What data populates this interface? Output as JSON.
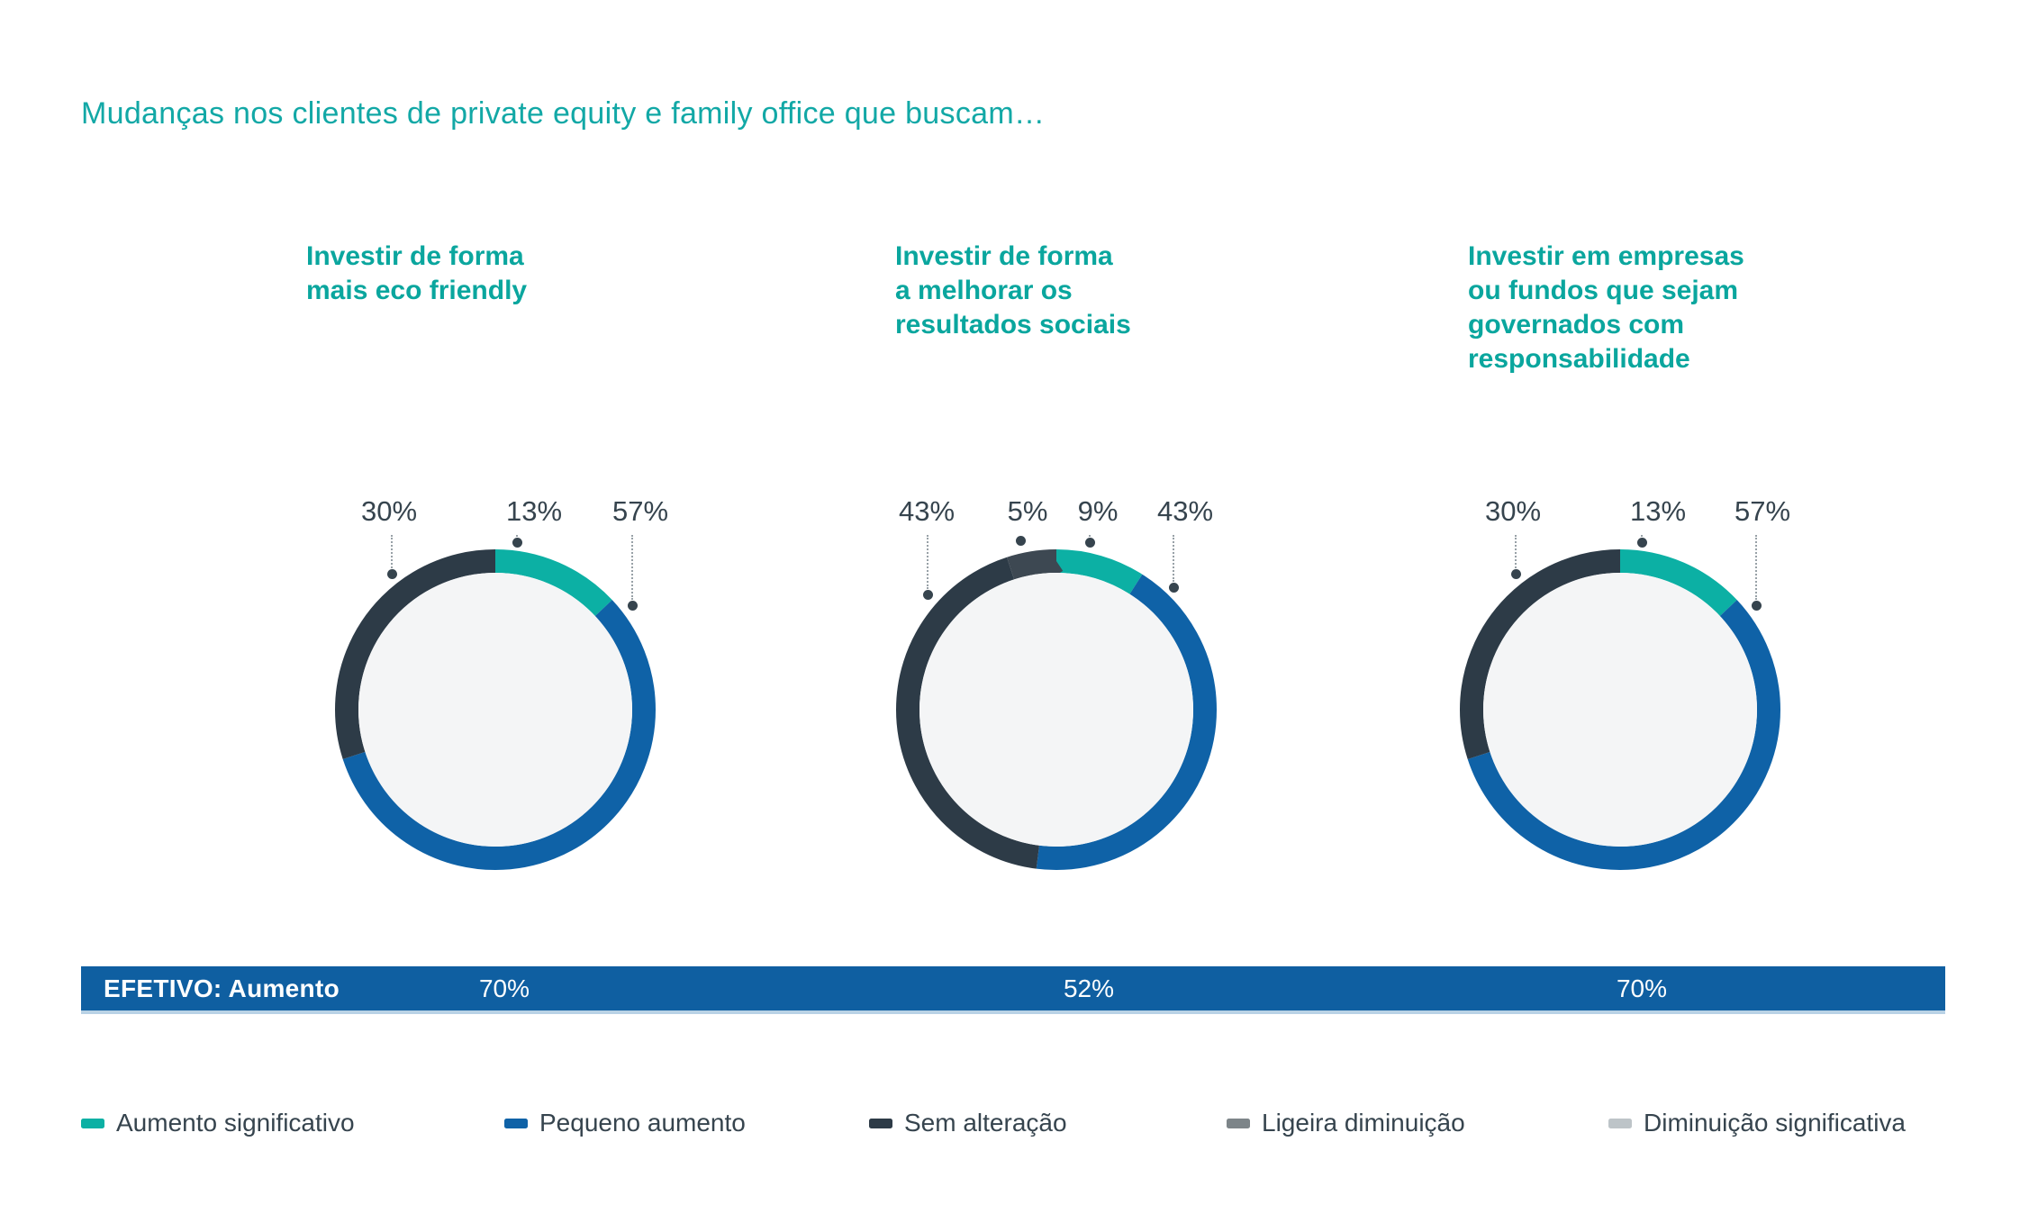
{
  "title": "Mudanças nos clientes de private equity e family office que buscam…",
  "colors": {
    "title_teal": "#12a8a6",
    "heading_teal": "#0aa69e",
    "teal": "#0cb0a4",
    "blue": "#0f62a7",
    "dark": "#2d3b47",
    "dim": "#3d4852",
    "gray": "#7d8589",
    "light_gray": "#bdc4c8",
    "inner_circle": "#f4f5f6",
    "label_text": "#36444e",
    "leader_dot": "#36444e",
    "bar_blue": "#0f5fa1"
  },
  "chart_data": [
    {
      "type": "donut",
      "title": "Investir de forma mais eco friendly",
      "title_lines": [
        "Investir de forma",
        "mais eco friendly"
      ],
      "segments": [
        {
          "name": "Aumento significativo",
          "value": 13,
          "color": "teal"
        },
        {
          "name": "Pequeno aumento",
          "value": 57,
          "color": "blue"
        },
        {
          "name": "Sem alteração",
          "value": 30,
          "color": "dark"
        }
      ],
      "callouts": [
        {
          "text": "30%",
          "series": "Sem alteração"
        },
        {
          "text": "13%",
          "series": "Aumento significativo"
        },
        {
          "text": "57%",
          "series": "Pequeno aumento"
        }
      ],
      "effective_increase": "70%"
    },
    {
      "type": "donut",
      "title": "Investir de forma a melhorar os resultados sociais",
      "title_lines": [
        "Investir de forma",
        "a melhorar os",
        "resultados sociais"
      ],
      "segments": [
        {
          "name": "Aumento significativo",
          "value": 9,
          "color": "teal"
        },
        {
          "name": "Pequeno aumento",
          "value": 43,
          "color": "blue"
        },
        {
          "name": "Sem alteração",
          "value": 43,
          "color": "dark"
        },
        {
          "name": "Ligeira diminuição",
          "value": 5,
          "color": "dim"
        }
      ],
      "callouts": [
        {
          "text": "43%",
          "series": "Sem alteração"
        },
        {
          "text": "5%",
          "series": "Ligeira diminuição"
        },
        {
          "text": "9%",
          "series": "Aumento significativo"
        },
        {
          "text": "43%",
          "series": "Pequeno aumento"
        }
      ],
      "effective_increase": "52%"
    },
    {
      "type": "donut",
      "title": "Investir em empresas ou fundos que sejam governados com responsabilidade",
      "title_lines": [
        "Investir em empresas",
        "ou fundos que sejam",
        "governados com",
        "responsabilidade"
      ],
      "segments": [
        {
          "name": "Aumento significativo",
          "value": 13,
          "color": "teal"
        },
        {
          "name": "Pequeno aumento",
          "value": 57,
          "color": "blue"
        },
        {
          "name": "Sem alteração",
          "value": 30,
          "color": "dark"
        }
      ],
      "callouts": [
        {
          "text": "30%",
          "series": "Sem alteração"
        },
        {
          "text": "13%",
          "series": "Aumento significativo"
        },
        {
          "text": "57%",
          "series": "Pequeno aumento"
        }
      ],
      "effective_increase": "70%"
    }
  ],
  "effetivo": {
    "label": "EFETIVO: Aumento",
    "values": [
      "70%",
      "52%",
      "70%"
    ]
  },
  "legend": {
    "items": [
      {
        "label": "Aumento significativo",
        "color": "teal"
      },
      {
        "label": "Pequeno aumento",
        "color": "blue"
      },
      {
        "label": "Sem alteração",
        "color": "dark"
      },
      {
        "label": "Ligeira diminuição",
        "color": "gray"
      },
      {
        "label": "Diminuição significativa",
        "color": "light_gray"
      }
    ]
  }
}
